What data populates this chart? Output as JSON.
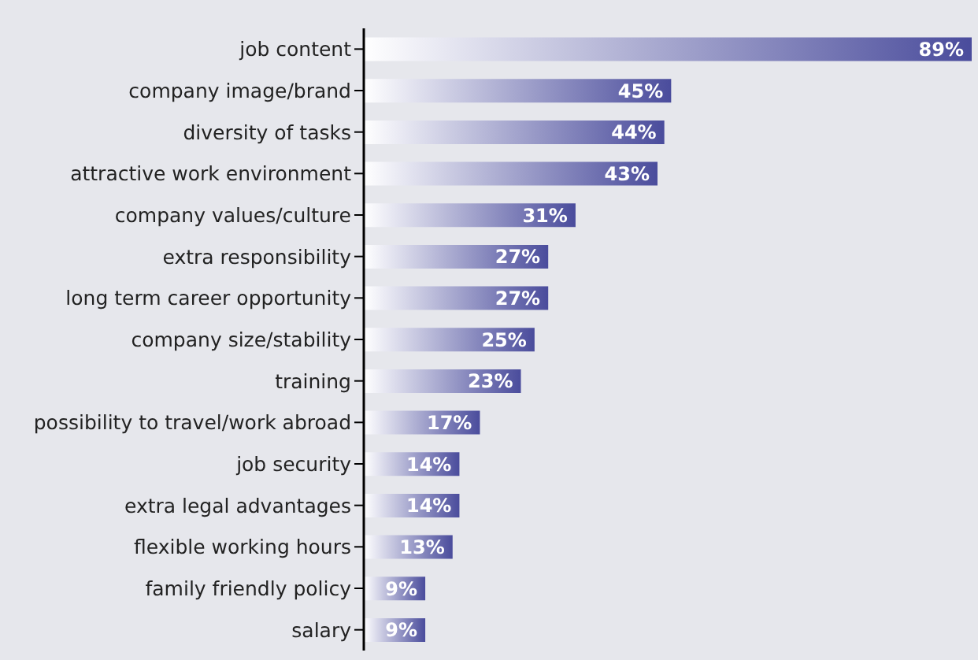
{
  "chart_data": {
    "type": "bar",
    "orientation": "horizontal",
    "categories": [
      "job content",
      "company image/brand",
      "diversity of tasks",
      "attractive work environment",
      "company values/culture",
      "extra responsibility",
      "long term career opportunity",
      "company size/stability",
      "training",
      "possibility to travel/work abroad",
      "job security",
      "extra legal advantages",
      "flexible working hours",
      "family friendly policy",
      "salary"
    ],
    "values": [
      89,
      45,
      44,
      43,
      31,
      27,
      27,
      25,
      23,
      17,
      14,
      14,
      13,
      9,
      9
    ],
    "value_labels": [
      "89%",
      "45%",
      "44%",
      "43%",
      "31%",
      "27%",
      "27%",
      "25%",
      "23%",
      "17%",
      "14%",
      "14%",
      "13%",
      "9%",
      "9%"
    ],
    "color": "#4a4c9c",
    "tick_labels": "y"
  }
}
